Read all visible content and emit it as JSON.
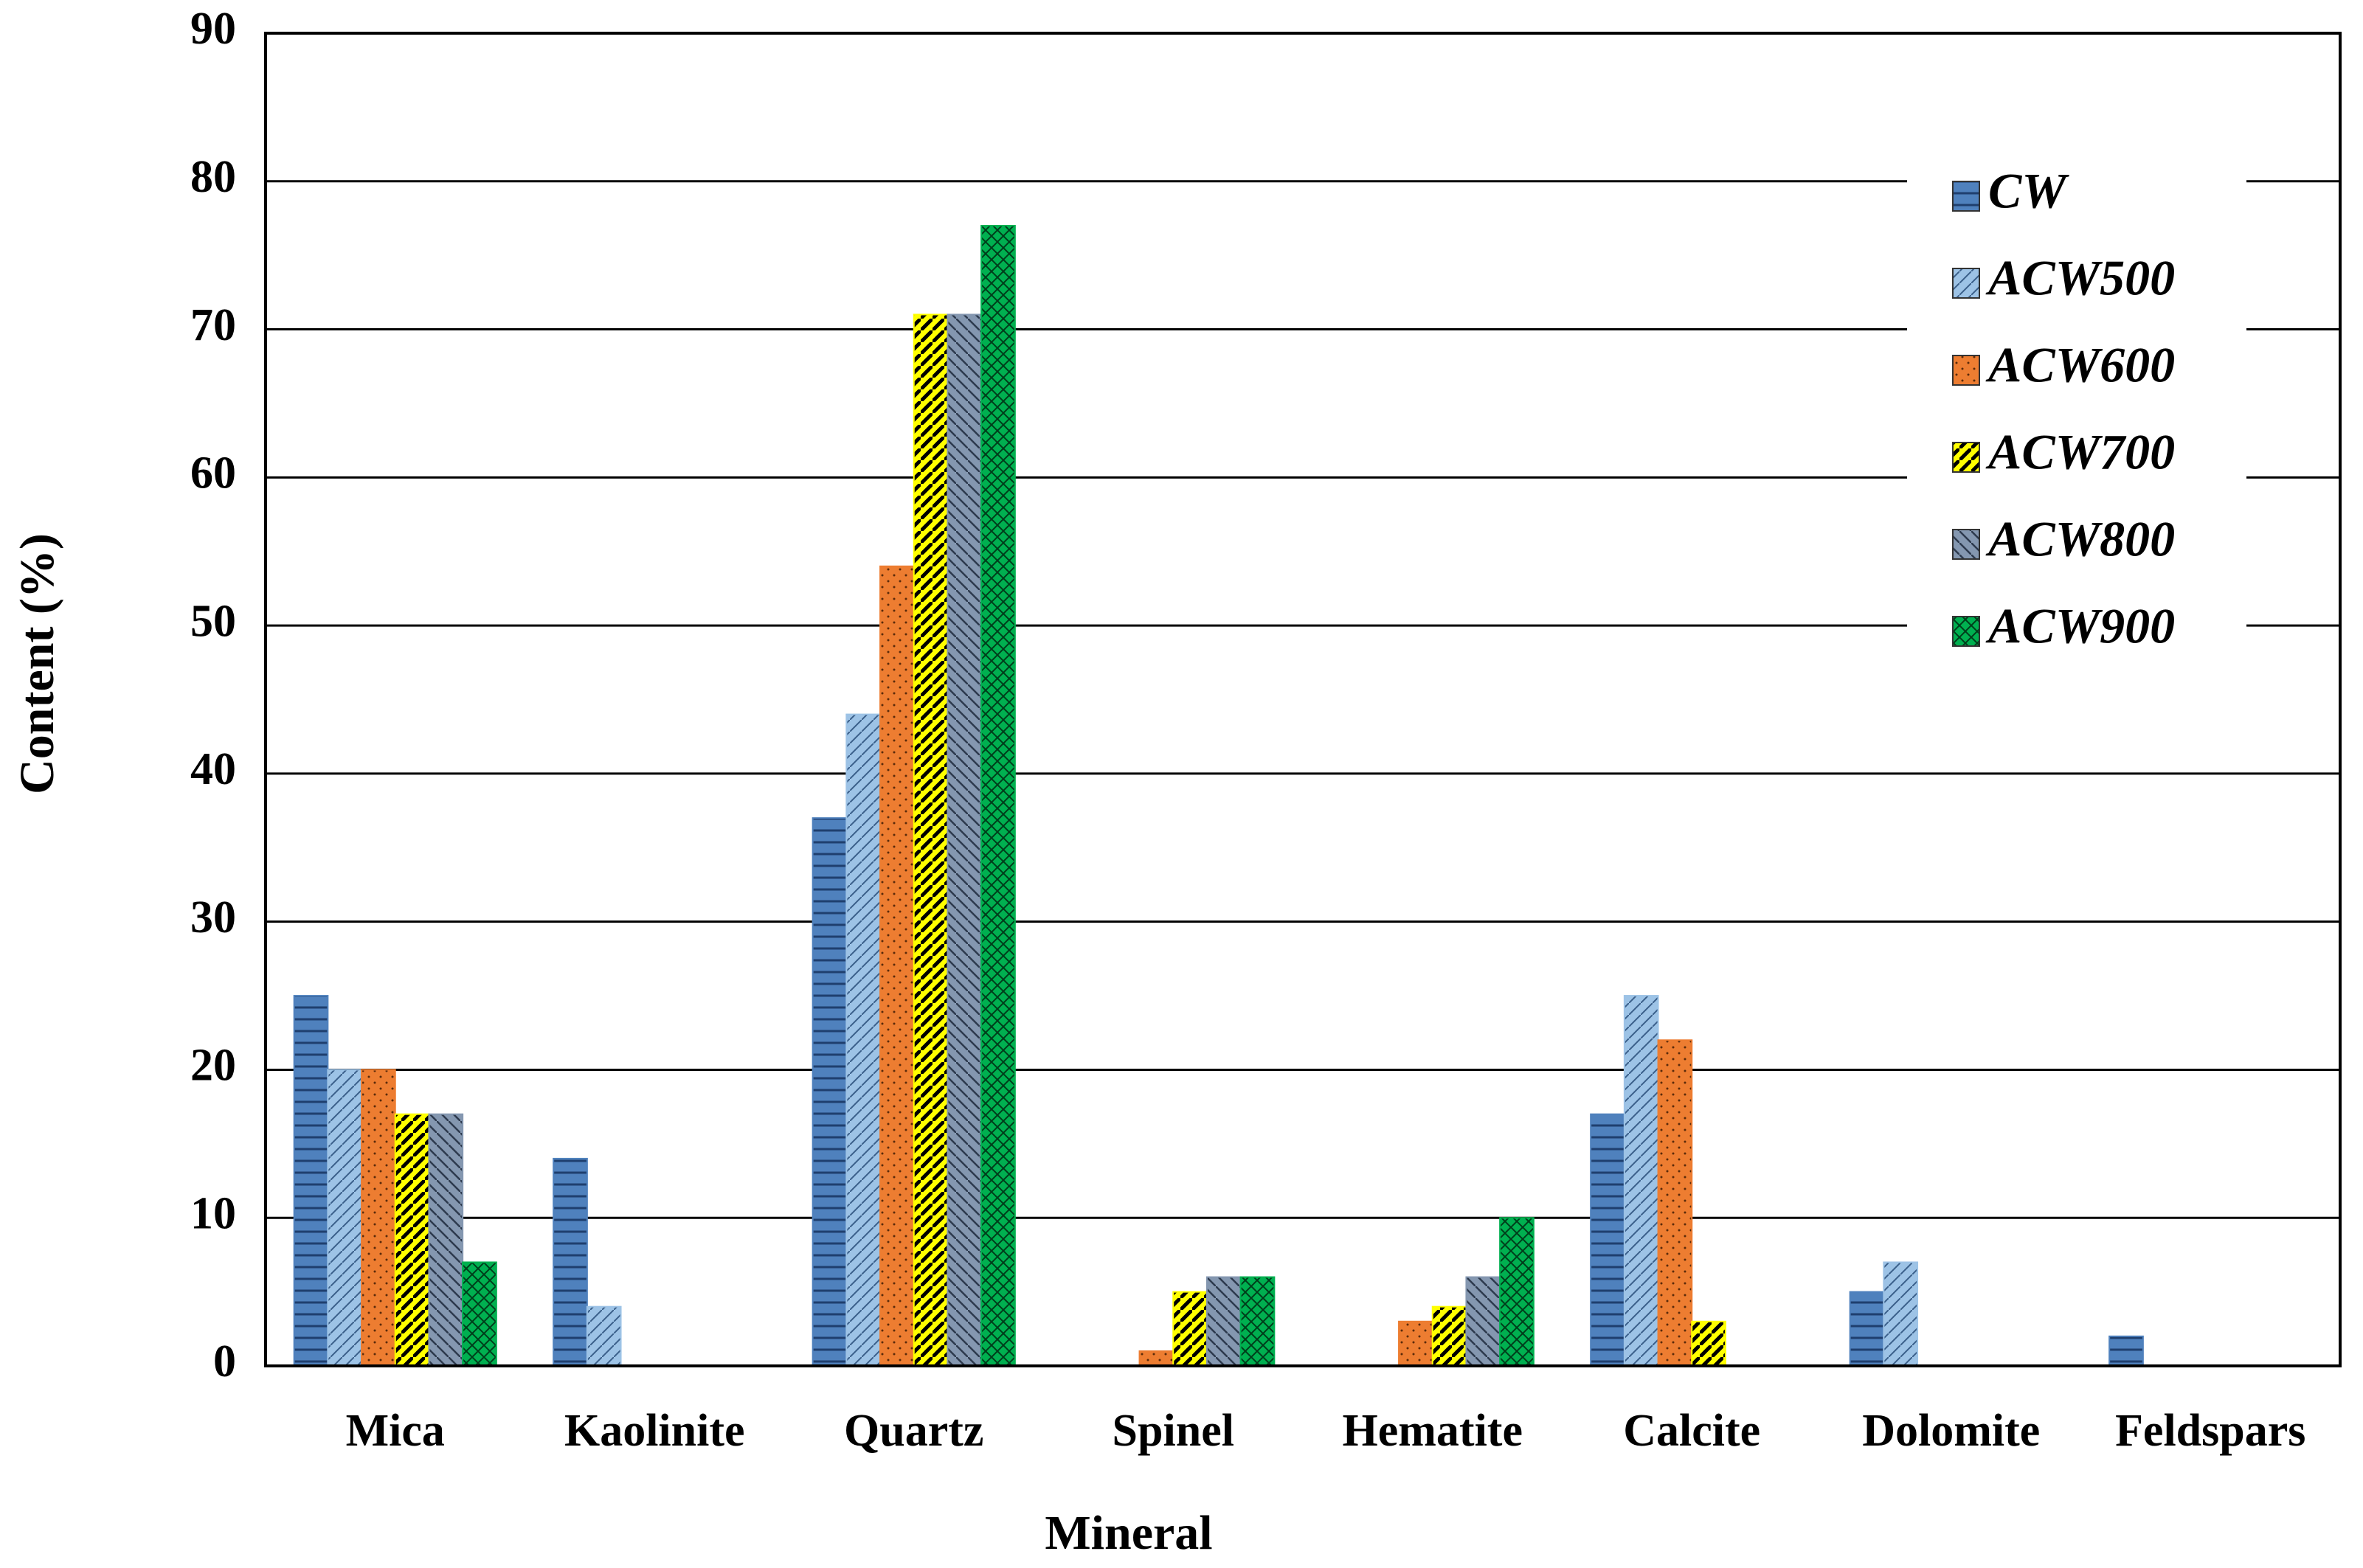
{
  "chart_data": {
    "type": "bar",
    "x_label": "Mineral",
    "y_label": "Content (%)",
    "categories": [
      "Mica",
      "Kaolinite",
      "Quartz",
      "Spinel",
      "Hematite",
      "Calcite",
      "Dolomite",
      "Feldspars"
    ],
    "series": [
      {
        "name": "CW",
        "color": "#4f81bd",
        "values": [
          25,
          14,
          37,
          0,
          0,
          17,
          5,
          2
        ]
      },
      {
        "name": "ACW500",
        "color": "#9dc3e6",
        "values": [
          20,
          4,
          44,
          0,
          0,
          25,
          7,
          0
        ]
      },
      {
        "name": "ACW600",
        "color": "#ed7d31",
        "values": [
          20,
          0,
          54,
          1,
          3,
          22,
          0,
          0
        ]
      },
      {
        "name": "ACW700",
        "color": "#ffff00",
        "values": [
          17,
          0,
          71,
          5,
          4,
          3,
          0,
          0
        ]
      },
      {
        "name": "ACW800",
        "color": "#8497b0",
        "values": [
          17,
          0,
          71,
          6,
          6,
          0,
          0,
          0
        ]
      },
      {
        "name": "ACW900",
        "color": "#00b050",
        "values": [
          7,
          0,
          77,
          6,
          10,
          0,
          0,
          0
        ]
      }
    ],
    "ylim": [
      0,
      90
    ],
    "yticks": [
      0,
      10,
      20,
      30,
      40,
      50,
      60,
      70,
      80,
      90
    ],
    "grid": true,
    "legend": "right"
  }
}
